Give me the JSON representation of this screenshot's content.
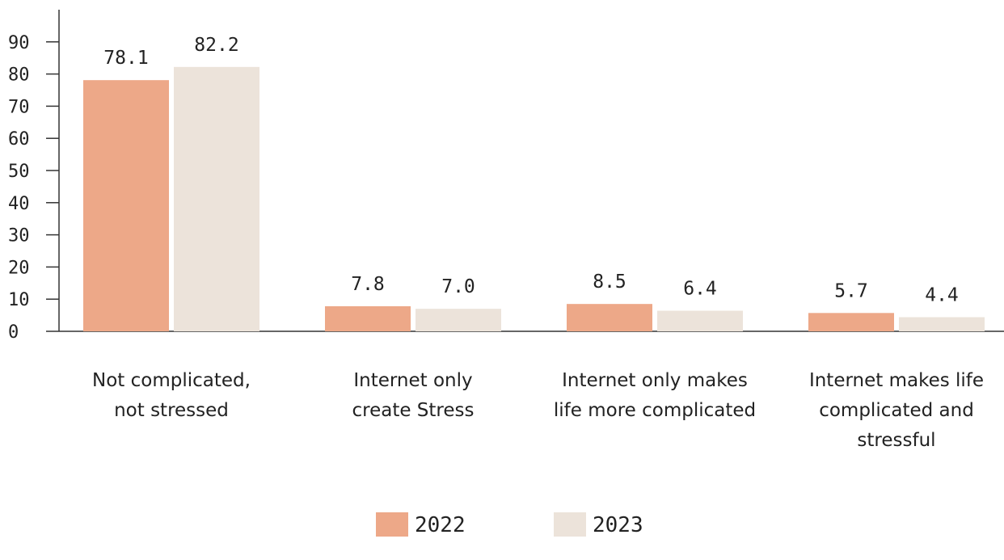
{
  "chart_data": {
    "type": "bar",
    "categories": [
      "Not complicated,\nnot stressed",
      "Internet only\ncreate Stress",
      "Internet only makes\nlife more complicated",
      "Internet makes life\ncomplicated and\nstressful"
    ],
    "series": [
      {
        "name": "2022",
        "color": "#eda888",
        "values": [
          78.1,
          7.8,
          8.5,
          5.7
        ],
        "value_labels": [
          "78.1",
          "7.8",
          "8.5",
          "5.7"
        ]
      },
      {
        "name": "2023",
        "color": "#ece3da",
        "values": [
          82.2,
          7.0,
          6.4,
          4.4
        ],
        "value_labels": [
          "82.2",
          "7.0",
          "6.4",
          "4.4"
        ]
      }
    ],
    "ylim": [
      0,
      100
    ],
    "yticks": [
      0,
      10,
      20,
      30,
      40,
      50,
      60,
      70,
      80,
      90
    ],
    "legend": "bottom"
  }
}
